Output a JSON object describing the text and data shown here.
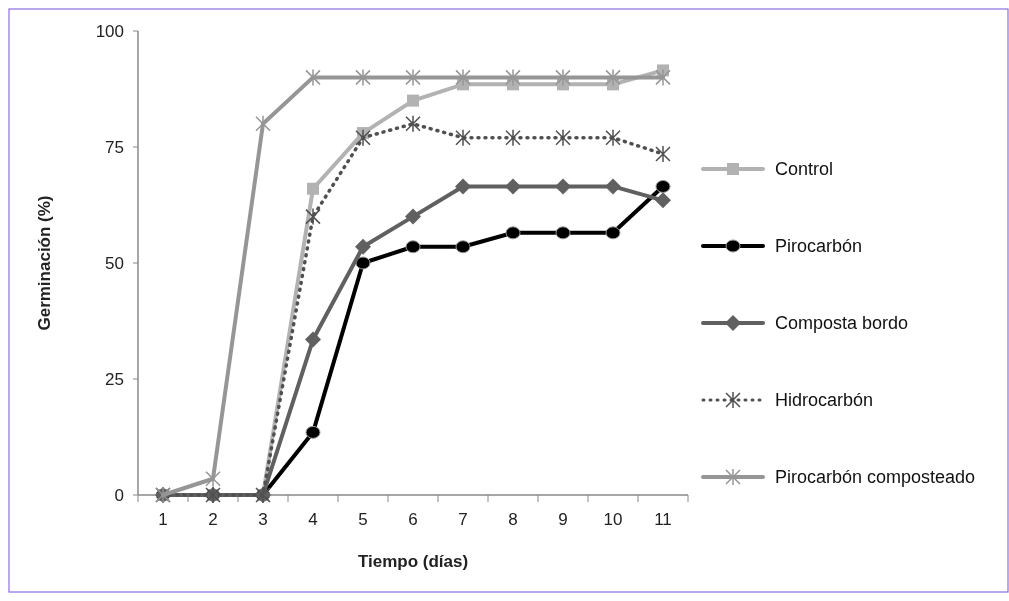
{
  "chart_data": {
    "type": "line",
    "xlabel": "Tiempo (días)",
    "ylabel": "Germinación (%)",
    "categories": [
      "1",
      "2",
      "3",
      "4",
      "5",
      "6",
      "7",
      "8",
      "9",
      "10",
      "11"
    ],
    "ylim": [
      0,
      100
    ],
    "yticks": [
      0,
      25,
      50,
      75,
      100
    ],
    "grid": false,
    "legend": "right",
    "series": [
      {
        "name": "Control",
        "color": "#b2b2b2",
        "marker": "square",
        "line_style": "solid",
        "values": [
          0,
          0,
          0,
          66,
          78,
          85,
          88.5,
          88.5,
          88.5,
          88.5,
          91.5
        ]
      },
      {
        "name": "Pirocarbón",
        "color": "#000000",
        "marker": "circle",
        "line_style": "solid",
        "values": [
          0,
          0,
          0,
          13.5,
          50,
          53.5,
          53.5,
          56.5,
          56.5,
          56.5,
          66.5
        ]
      },
      {
        "name": "Composta bordo",
        "color": "#606060",
        "marker": "diamond",
        "line_style": "solid",
        "values": [
          0,
          0,
          0,
          33.5,
          53.5,
          60,
          66.5,
          66.5,
          66.5,
          66.5,
          63.5
        ]
      },
      {
        "name": "Hidrocarbón",
        "color": "#505050",
        "marker": "cross",
        "line_style": "dotted",
        "values": [
          0,
          0,
          0,
          60,
          77,
          80,
          77,
          77,
          77,
          77,
          73.5
        ]
      },
      {
        "name": "Pirocarbón composteado",
        "color": "#969696",
        "marker": "cross",
        "line_style": "solid",
        "values": [
          0,
          3.5,
          80,
          90,
          90,
          90,
          90,
          90,
          90,
          90,
          90
        ]
      }
    ]
  }
}
